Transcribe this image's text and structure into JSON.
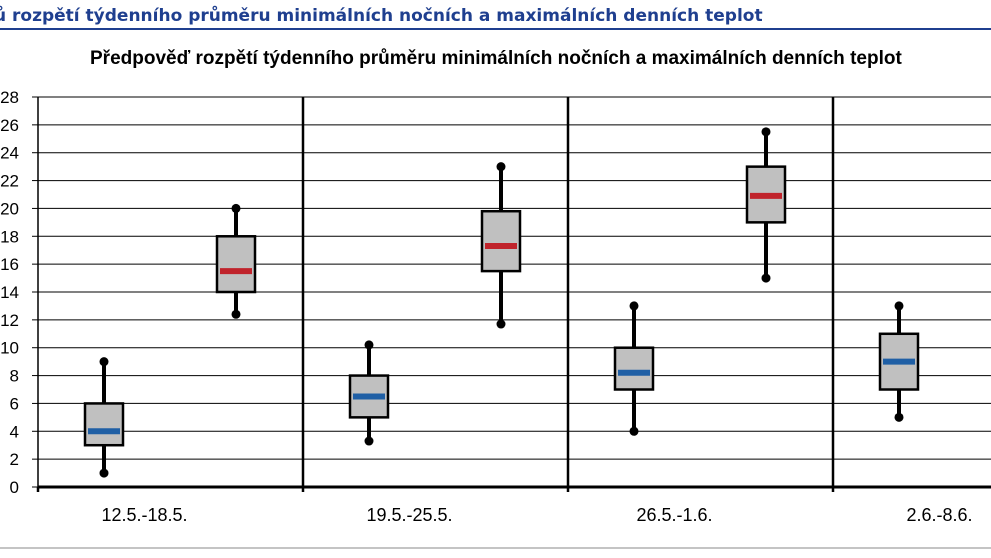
{
  "header": {
    "title": "ů rozpětí týdenního průměru minimálních nočních a maximálních denních teplot"
  },
  "chart_data": {
    "type": "boxplot",
    "title": "Předpověď rozpětí týdenního průměru minimálních nočních a maximálních denních teplot",
    "xlabel": "",
    "ylabel": "",
    "ylim": [
      0,
      28
    ],
    "yticks": [
      0,
      2,
      4,
      6,
      8,
      10,
      12,
      14,
      16,
      18,
      20,
      22,
      24,
      26,
      28
    ],
    "ytick_labels": [
      "0",
      "2",
      "4",
      "6",
      "8",
      "10",
      "12",
      "14",
      "16",
      "18",
      "20",
      "22",
      "24",
      "26",
      "28"
    ],
    "grid": true,
    "categories": [
      "12.5.-18.5.",
      "19.5.-25.5.",
      "26.5.-1.6.",
      "2.6.-8.6."
    ],
    "series": [
      {
        "key": "min",
        "color_median": "#1f5fa5",
        "boxes": [
          {
            "whisker_low": 1.0,
            "q1": 3.0,
            "median": 4.0,
            "q3": 6.0,
            "whisker_high": 9.0
          },
          {
            "whisker_low": 3.3,
            "q1": 5.0,
            "median": 6.5,
            "q3": 8.0,
            "whisker_high": 10.2
          },
          {
            "whisker_low": 4.0,
            "q1": 7.0,
            "median": 8.2,
            "q3": 10.0,
            "whisker_high": 13.0
          },
          {
            "whisker_low": 5.0,
            "q1": 7.0,
            "median": 9.0,
            "q3": 11.0,
            "whisker_high": 13.0
          }
        ]
      },
      {
        "key": "max",
        "color_median": "#c0232b",
        "boxes": [
          {
            "whisker_low": 12.4,
            "q1": 14.0,
            "median": 15.5,
            "q3": 18.0,
            "whisker_high": 20.0
          },
          {
            "whisker_low": 11.7,
            "q1": 15.5,
            "median": 17.3,
            "q3": 19.8,
            "whisker_high": 23.0
          },
          {
            "whisker_low": 15.0,
            "q1": 19.0,
            "median": 20.9,
            "q3": 23.0,
            "whisker_high": 25.5
          },
          null
        ]
      }
    ],
    "box_fill": "#c0c0c0",
    "line_color": "#000000"
  }
}
